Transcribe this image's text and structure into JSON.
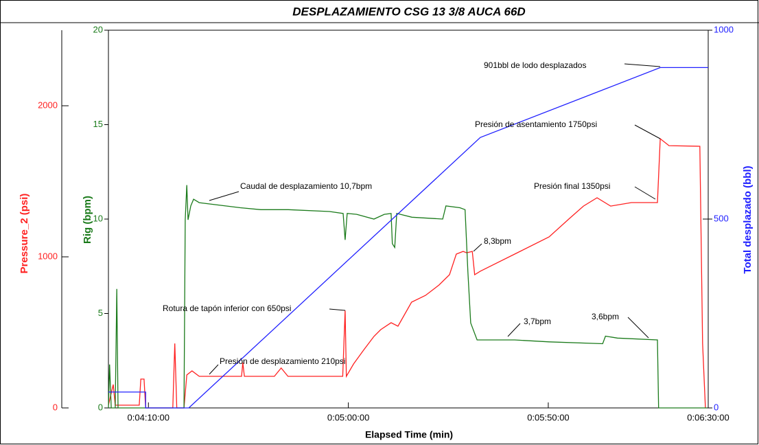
{
  "chart_data": {
    "type": "line",
    "title": "DESPLAZAMIENTO CSG 13 3/8 AUCA 66D",
    "xlabel": "Elapsed Time (min)",
    "ylabel": "Pressure_2 (psi)",
    "y2label": "Rig (bpm)",
    "y3label": "Total desplazado (bbl)",
    "xlim": [
      240,
      390
    ],
    "xticks": [
      {
        "value": 250,
        "label": "0:04:10:00"
      },
      {
        "value": 300,
        "label": "0:05:00:00"
      },
      {
        "value": 350,
        "label": "0:05:50:00"
      },
      {
        "value": 390,
        "label": "0:06:30:00"
      }
    ],
    "ylim": [
      0,
      2500
    ],
    "yticks": [
      0,
      1000,
      2000
    ],
    "y2lim": [
      0,
      20
    ],
    "y2ticks": [
      0,
      5,
      10,
      15,
      20
    ],
    "y3lim": [
      0,
      1000
    ],
    "y3ticks": [
      0,
      500,
      1000
    ],
    "series": [
      {
        "name": "Pressure_2 (psi)",
        "color": "#ff2020",
        "axis": "y",
        "x": [
          240,
          241.2,
          241.7,
          247.7,
          248.1,
          248.9,
          249.3,
          256.1,
          256.6,
          257.1,
          258.9,
          259.6,
          260.9,
          262.7,
          267.8,
          273.3,
          273.6,
          274.0,
          281.5,
          283.2,
          284.9,
          298.6,
          299.2,
          299.5,
          301.3,
          303.8,
          306.4,
          308.1,
          310.7,
          312.4,
          315.8,
          319.3,
          322.7,
          325.3,
          327.0,
          328.7,
          329.6,
          331.0,
          331.6,
          333.0,
          341.6,
          350.2,
          355.3,
          358.8,
          362.2,
          365.6,
          370.8,
          377.3,
          378.0,
          380.2,
          387.9,
          388.6,
          389.3
        ],
        "values": [
          18,
          155,
          18,
          18,
          191,
          191,
          0,
          0,
          427,
          0,
          0,
          218,
          245,
          209,
          209,
          209,
          300,
          209,
          209,
          264,
          209,
          209,
          645,
          209,
          291,
          382,
          473,
          518,
          564,
          541,
          700,
          745,
          814,
          882,
          1018,
          1036,
          1027,
          1036,
          882,
          905,
          1018,
          1132,
          1254,
          1336,
          1391,
          1336,
          1359,
          1359,
          1782,
          1736,
          1732,
          427,
          0
        ]
      },
      {
        "name": "Rig (bpm)",
        "color": "#1a7a1a",
        "axis": "y2",
        "x": [
          240,
          240.3,
          240.7,
          241.7,
          242.1,
          242.4,
          258.9,
          259.2,
          259.6,
          259.9,
          260.6,
          261.3,
          262.7,
          273.0,
          278.1,
          285.0,
          295.3,
          298.7,
          299.2,
          299.7,
          302.1,
          306.4,
          309.0,
          310.7,
          311.0,
          311.6,
          312.1,
          315.9,
          323.6,
          324.4,
          327.9,
          329.2,
          329.9,
          330.6,
          332.2,
          341.6,
          350.2,
          363.6,
          364.3,
          367.3,
          377.3,
          377.6,
          389.7
        ],
        "values": [
          0,
          2.3,
          0,
          0,
          6.3,
          0,
          0,
          9.96,
          11.8,
          9.96,
          10.7,
          11.05,
          10.87,
          10.6,
          10.5,
          10.5,
          10.4,
          10.3,
          8.9,
          10.3,
          10.25,
          10.0,
          10.25,
          10.3,
          8.7,
          8.5,
          10.3,
          10.1,
          10.0,
          10.7,
          10.6,
          10.5,
          7.2,
          4.5,
          3.6,
          3.6,
          3.5,
          3.4,
          3.8,
          3.7,
          3.6,
          0,
          0
        ]
      },
      {
        "name": "Total desplazado (bbl)",
        "color": "#2020ff",
        "axis": "y3",
        "x": [
          240,
          249.3,
          249.3,
          260.1,
          333.0,
          378.0,
          390
        ],
        "values": [
          42,
          42,
          0,
          0,
          716,
          901,
          901
        ]
      }
    ],
    "annotations": [
      "901bbl de lodo desplazados",
      "Presión de asentamiento 1750psi",
      "Caudal de desplazamiento 10,7bpm",
      "Presión final 1350psi",
      "8,3bpm",
      "Rotura de tapón inferior con 650psi",
      "3,7bpm",
      "3,6bpm",
      "Presión de desplazamiento 210psi"
    ]
  }
}
